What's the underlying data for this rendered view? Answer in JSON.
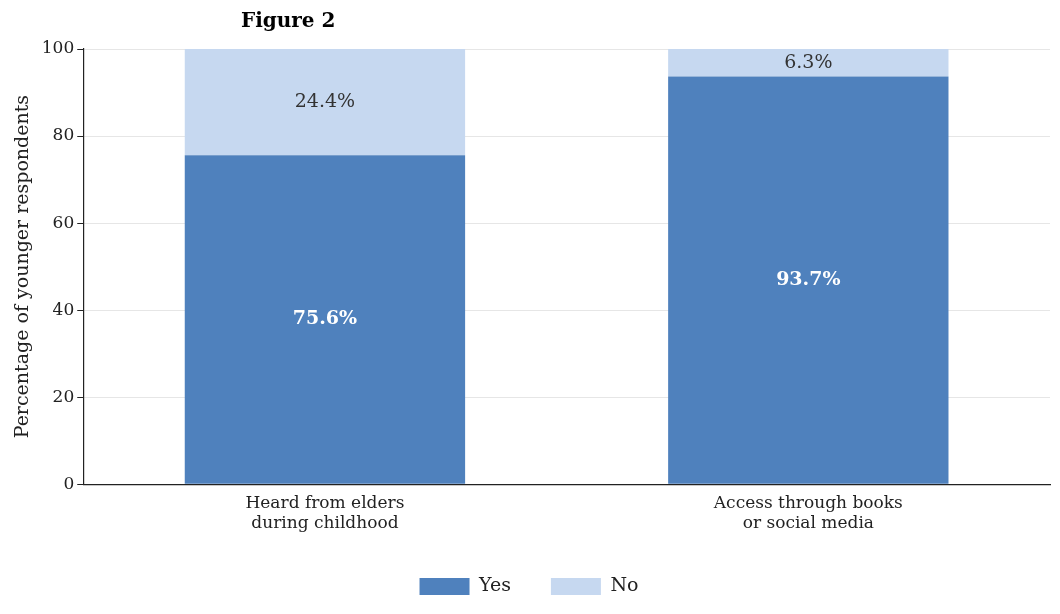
{
  "chart_data": {
    "type": "bar",
    "title": "Figure 2",
    "ylabel": "Percentage of younger respondents",
    "categories": [
      "Heard from elders during childhood",
      "Access through books or social media"
    ],
    "stacked": true,
    "ylim": [
      0,
      100
    ],
    "yticks": [
      0,
      20,
      40,
      60,
      80,
      100
    ],
    "grid": "y",
    "legend": "bottom",
    "series": [
      {
        "name": "Yes",
        "color": "#4f81bd",
        "values": [
          75.6,
          93.7
        ],
        "value_labels": [
          "75.6%",
          "93.7%"
        ]
      },
      {
        "name": "No",
        "color": "#c6d8f0",
        "values": [
          24.4,
          6.3
        ],
        "value_labels": [
          "24.4%",
          "6.3%"
        ]
      }
    ]
  }
}
